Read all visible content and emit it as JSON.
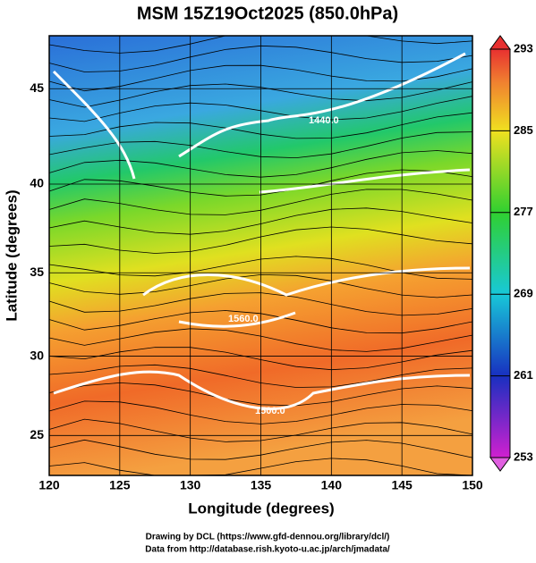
{
  "title": "MSM 15Z19Oct2025 (850.0hPa)",
  "x_axis": {
    "label": "Longitude (degrees)",
    "ticks": [
      120,
      125,
      130,
      135,
      140,
      145,
      150
    ],
    "lim": [
      120,
      150
    ]
  },
  "y_axis": {
    "label": "Latitude  (degrees)",
    "ticks": [
      25,
      30,
      35,
      40,
      45
    ],
    "lim": [
      22.4,
      47.6
    ]
  },
  "colorbar": {
    "ticks": [
      293,
      285,
      277,
      269,
      261,
      253
    ],
    "lim": [
      253,
      293
    ]
  },
  "contour_labels": [
    "1440.0",
    "1560.0",
    "1500.0"
  ],
  "credits": [
    "Drawing by DCL (https://www.gfd-dennou.org/library/dcl/)",
    "Data from http://database.rish.kyoto-u.ac.jp/arch/jmadata/"
  ]
}
